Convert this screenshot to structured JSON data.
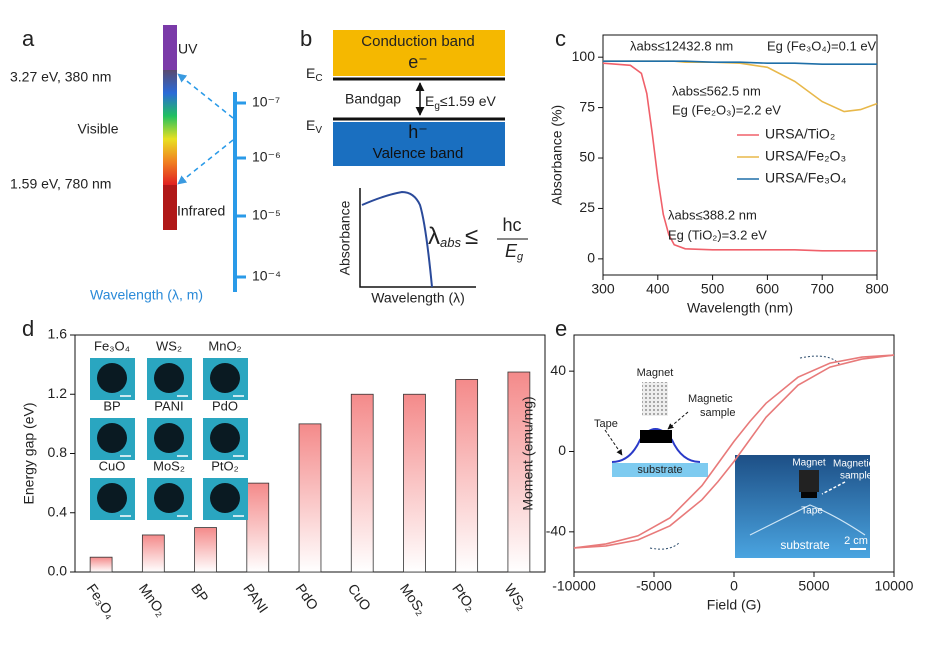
{
  "panel_labels": [
    "a",
    "b",
    "c",
    "d",
    "e"
  ],
  "panel_a": {
    "uv": "UV",
    "uv_edge": "3.27 eV, 380 nm",
    "visible": "Visible",
    "ir_edge": "1.59 eV, 780 nm",
    "infrared": "Infrared",
    "wavelength_ticks": [
      "10⁻⁷",
      "10⁻⁶",
      "10⁻⁵",
      "10⁻⁴"
    ],
    "axis_label": "Wavelength (λ, m)"
  },
  "panel_b": {
    "conduction_band": "Conduction band",
    "electron": "e⁻",
    "ec": {
      "main": "E",
      "sub": "C"
    },
    "bandgap": "Bandgap",
    "eg": {
      "main": "E",
      "sub": "g",
      "rest": "≤1.59 eV"
    },
    "ev": {
      "main": "E",
      "sub": "V"
    },
    "hole": "h⁻",
    "valence_band": "Valence band",
    "plot_ylabel": "Absorbance",
    "plot_xlabel": "Wavelength (λ)",
    "formula": {
      "lhs": "λ",
      "lhs_sub": "abs",
      "relation": "≤",
      "numerator": "hc",
      "denominator": "E",
      "denominator_sub": "g"
    }
  },
  "chart_data": [
    {
      "type": "line",
      "x": [
        300,
        350,
        370,
        380,
        390,
        400,
        410,
        420,
        430,
        450,
        500,
        550,
        600,
        650,
        700,
        740,
        770,
        800
      ],
      "xlim": [
        300,
        800
      ],
      "xticks": [
        300,
        400,
        500,
        600,
        700,
        800
      ],
      "ylim": [
        -8,
        111
      ],
      "yticks": [
        0,
        25,
        50,
        75,
        100
      ],
      "xlabel": "Wavelength (nm)",
      "ylabel": "Absorbance (%)",
      "legend": "center right",
      "series": [
        {
          "name": "URSA/TiO₂",
          "color": "#f0606a",
          "values": [
            97,
            96,
            92,
            82,
            62,
            40,
            22,
            12,
            7,
            5,
            4.5,
            4.5,
            4.5,
            4.5,
            4,
            4,
            4,
            4
          ]
        },
        {
          "name": "URSA/Fe₂O₃",
          "color": "#e8b84a",
          "values": [
            98,
            98,
            98,
            98,
            98,
            98,
            98,
            98,
            98,
            97.5,
            97.5,
            97,
            95,
            88,
            78,
            73,
            74,
            77
          ]
        },
        {
          "name": "URSA/Fe₃O₄",
          "color": "#1f6fa8",
          "values": [
            98,
            98,
            98,
            98,
            98,
            98,
            98,
            98,
            98,
            98,
            97.5,
            97.5,
            97,
            97,
            96.5,
            96.5,
            96.5,
            96.5
          ]
        }
      ],
      "annotations": [
        "λabs≤12432.8 nm",
        "Eg (Fe₃O₄)=0.1 eV",
        "λabs≤562.5 nm",
        "Eg (Fe₂O₃)=2.2 eV",
        "λabs≤388.2 nm",
        "Eg (TiO₂)=3.2 eV"
      ]
    },
    {
      "type": "bar",
      "categories": [
        "Fe₃O₄",
        "MnO₂",
        "BP",
        "PANI",
        "PdO",
        "CuO",
        "MoS₂",
        "PtO₂",
        "WS₂"
      ],
      "values": [
        0.1,
        0.25,
        0.3,
        0.6,
        1.0,
        1.2,
        1.2,
        1.3,
        1.35
      ],
      "color": "#f48a8a",
      "ylim": [
        0,
        1.6
      ],
      "yticks": [
        {
          "value": 0,
          "label": "0.0"
        },
        0.4,
        0.8,
        1.2,
        1.6
      ],
      "ylabel": "Energy gap (eV)",
      "inset_labels": [
        "Fe₃O₄",
        "WS₂",
        "MnO₂",
        "BP",
        "PANI",
        "PdO",
        "CuO",
        "MoS₂",
        "PtO₂"
      ]
    },
    {
      "type": "line",
      "x": [
        -10000,
        -8000,
        -6000,
        -4000,
        -2000,
        -1000,
        0,
        1000,
        2000,
        4000,
        6000,
        8000,
        10000
      ],
      "xlim": [
        -10000,
        10000
      ],
      "xticks": [
        -10000,
        -5000,
        0,
        5000,
        10000
      ],
      "ylim": [
        -60,
        58
      ],
      "yticks": [
        -40,
        0,
        40
      ],
      "xlabel": "Field (G)",
      "ylabel": "Moment (emu/mg)",
      "series": [
        {
          "color": "#e87a7a",
          "values": [
            -48,
            -47,
            -44,
            -37,
            -24,
            -15,
            -5,
            6,
            17,
            33,
            42,
            46,
            48
          ]
        },
        {
          "color": "#e87a7a",
          "values": [
            -48,
            -46,
            -42,
            -33,
            -17,
            -6,
            5,
            15,
            24,
            37,
            44,
            47,
            48
          ]
        }
      ],
      "inset_labels": {
        "magnet": "Magnet",
        "sample": [
          "Magnetic",
          "sample"
        ],
        "tape": "Tape",
        "substrate": "substrate",
        "photo_magnet": "Magnet",
        "photo_sample": [
          "Magnetic",
          "sample"
        ],
        "photo_tape": "Tape",
        "photo_substrate": "substrate",
        "scale": "2 cm"
      }
    }
  ]
}
